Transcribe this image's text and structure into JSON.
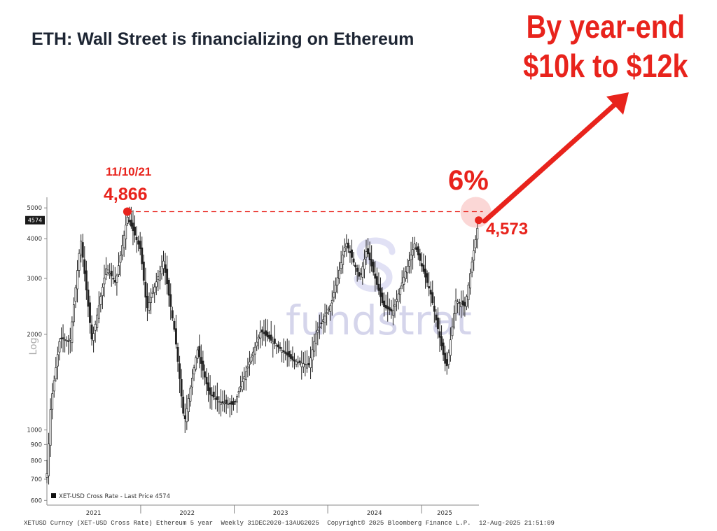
{
  "slide": {
    "title": "ETH: Wall Street is financializing on Ethereum",
    "callout_line1": "By year-end",
    "callout_line2": "$10k to $12k",
    "peak_date": "11/10/21",
    "peak_value": "4,866",
    "gap_percent": "6%",
    "current_value": "4,573",
    "watermark": "fundstrat"
  },
  "colors": {
    "accent_red": "#e8231c",
    "title": "#1d2533",
    "candles": "#222222",
    "watermark": "#b4b4dc"
  },
  "footer": {
    "security": "XETUSD Curncy (XET-USD Cross Rate) Ethereum 5 year",
    "params": "Weekly 31DEC2020-13AUG2025",
    "copyright": "Copyright© 2025 Bloomberg Finance L.P.",
    "timestamp": "12-Aug-2025 21:51:09"
  },
  "chart_data": {
    "type": "candlestick",
    "y_scale": "log",
    "ylabel": "Log",
    "ylim": [
      580,
      5400
    ],
    "y_ticks": [
      600,
      700,
      800,
      900,
      1000,
      2000,
      3000,
      4000,
      5000
    ],
    "x_range": [
      "2020-12-31",
      "2025-08-13"
    ],
    "x_ticks": [
      {
        "date": "2021-07-01",
        "label": "2021"
      },
      {
        "date": "2022-07-01",
        "label": "2022"
      },
      {
        "date": "2023-07-01",
        "label": "2023"
      },
      {
        "date": "2024-07-01",
        "label": "2024"
      },
      {
        "date": "2025-04-01",
        "label": "2025"
      }
    ],
    "last_price_tag": "4574",
    "legend": "XET-USD Cross Rate - Last Price 4574",
    "peak": {
      "date": "2021-11-10",
      "value": 4866
    },
    "current": {
      "date": "2025-08-12",
      "value": 4573
    },
    "annotation_target": "$10k to $12k",
    "series_close_anchors": [
      {
        "date": "2021-01-01",
        "close": 730
      },
      {
        "date": "2021-01-15",
        "close": 1200
      },
      {
        "date": "2021-02-20",
        "close": 1950
      },
      {
        "date": "2021-03-31",
        "close": 1900
      },
      {
        "date": "2021-05-12",
        "close": 4000
      },
      {
        "date": "2021-06-25",
        "close": 1900
      },
      {
        "date": "2021-08-20",
        "close": 3250
      },
      {
        "date": "2021-09-25",
        "close": 2900
      },
      {
        "date": "2021-11-10",
        "close": 4700
      },
      {
        "date": "2021-12-31",
        "close": 3700
      },
      {
        "date": "2022-01-25",
        "close": 2400
      },
      {
        "date": "2022-03-31",
        "close": 3400
      },
      {
        "date": "2022-05-15",
        "close": 2000
      },
      {
        "date": "2022-06-20",
        "close": 1050
      },
      {
        "date": "2022-08-10",
        "close": 1800
      },
      {
        "date": "2022-09-25",
        "close": 1300
      },
      {
        "date": "2022-11-10",
        "close": 1220
      },
      {
        "date": "2022-12-31",
        "close": 1200
      },
      {
        "date": "2023-04-15",
        "close": 2050
      },
      {
        "date": "2023-08-20",
        "close": 1650
      },
      {
        "date": "2023-10-20",
        "close": 1600
      },
      {
        "date": "2023-11-15",
        "close": 2000
      },
      {
        "date": "2024-01-15",
        "close": 2500
      },
      {
        "date": "2024-03-12",
        "close": 3900
      },
      {
        "date": "2024-05-05",
        "close": 3000
      },
      {
        "date": "2024-06-01",
        "close": 3700
      },
      {
        "date": "2024-08-05",
        "close": 2450
      },
      {
        "date": "2024-09-10",
        "close": 2350
      },
      {
        "date": "2024-12-05",
        "close": 3850
      },
      {
        "date": "2025-02-05",
        "close": 2700
      },
      {
        "date": "2025-04-08",
        "close": 1550
      },
      {
        "date": "2025-05-15",
        "close": 2550
      },
      {
        "date": "2025-06-20",
        "close": 2450
      },
      {
        "date": "2025-07-15",
        "close": 3300
      },
      {
        "date": "2025-08-12",
        "close": 4573
      }
    ]
  }
}
